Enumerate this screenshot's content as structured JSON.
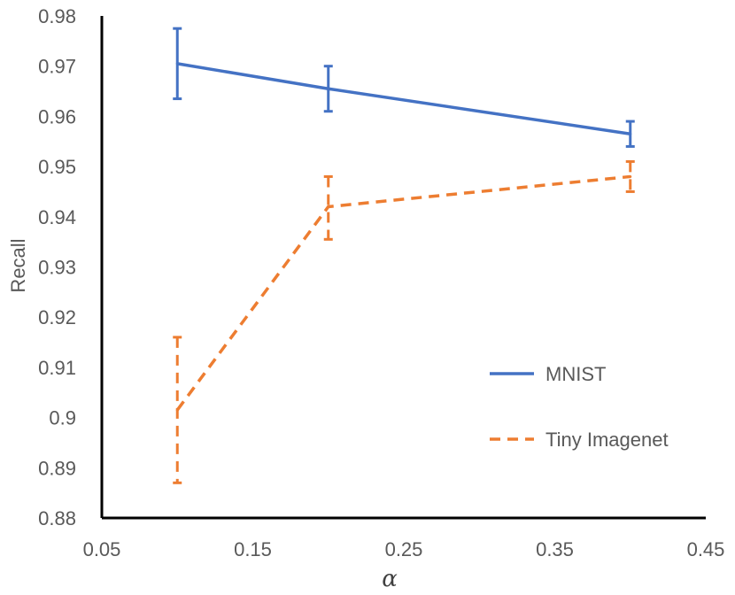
{
  "chart_data": {
    "type": "line",
    "title": "",
    "xlabel": "α",
    "ylabel": "Recall",
    "xlim": [
      0.05,
      0.45
    ],
    "ylim": [
      0.88,
      0.98
    ],
    "x_ticks": [
      "0.05",
      "0.15",
      "0.25",
      "0.35",
      "0.45"
    ],
    "y_ticks": [
      "0.88",
      "0.89",
      "0.9",
      "0.91",
      "0.92",
      "0.93",
      "0.94",
      "0.95",
      "0.96",
      "0.97",
      "0.98"
    ],
    "grid": false,
    "legend_position": "right",
    "series": [
      {
        "name": "MNIST",
        "color": "#4472C4",
        "line_style": "solid",
        "x": [
          0.1,
          0.2,
          0.4
        ],
        "y": [
          0.9705,
          0.9655,
          0.9565
        ],
        "error_low": [
          0.9635,
          0.961,
          0.954
        ],
        "error_high": [
          0.9775,
          0.97,
          0.959
        ]
      },
      {
        "name": "Tiny Imagenet",
        "color": "#ED7D31",
        "line_style": "dashed",
        "x": [
          0.1,
          0.2,
          0.4
        ],
        "y": [
          0.9015,
          0.942,
          0.948
        ],
        "error_low": [
          0.887,
          0.9355,
          0.945
        ],
        "error_high": [
          0.916,
          0.948,
          0.951
        ]
      }
    ]
  }
}
